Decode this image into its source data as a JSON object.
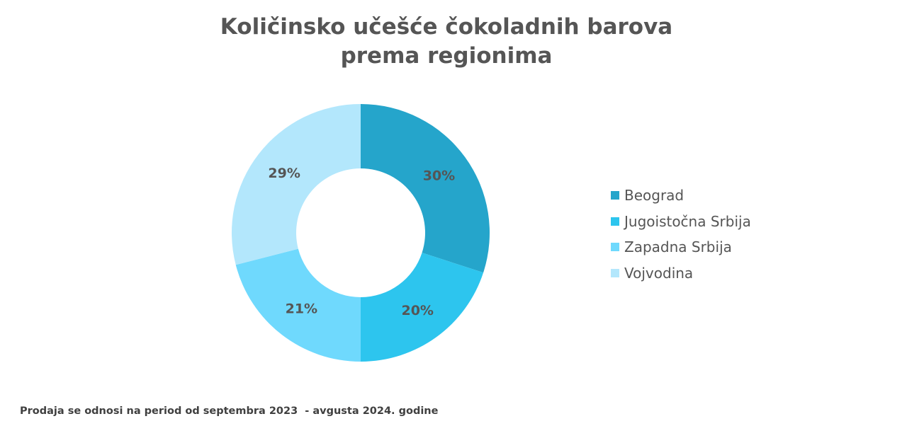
{
  "title_lines": [
    "Količinsko učešće čokoladnih barova",
    "prema regionima"
  ],
  "footnote": "Prodaja se odnosi na period od septembra 2023  - avgusta 2024. godine",
  "chart_data": {
    "type": "pie",
    "donut": true,
    "title": "Količinsko učešće čokoladnih barova prema regionima",
    "categories": [
      "Beograd",
      "Jugoistočna Srbija",
      "Zapadna Srbija",
      "Vojvodina"
    ],
    "values": [
      30,
      20,
      21,
      29
    ],
    "labels": [
      "30%",
      "20%",
      "21%",
      "29%"
    ],
    "colors": [
      "#25A5CB",
      "#2DC5EE",
      "#6FD9FD",
      "#B3E7FC"
    ],
    "legend_position": "right"
  }
}
